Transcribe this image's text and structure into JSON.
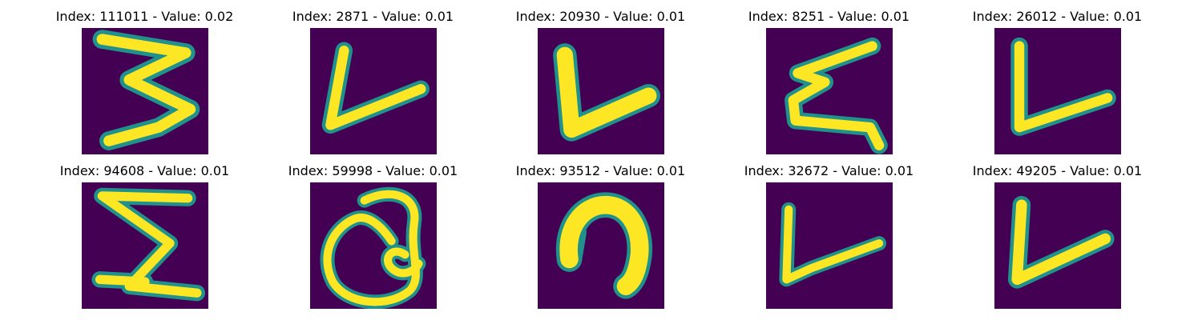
{
  "panels": [
    {
      "index_label": "Index: 111011 - Value: 0.02",
      "glyph": "three-stroke-icon"
    },
    {
      "index_label": "Index: 2871 - Value: 0.01",
      "glyph": "v-stroke-icon"
    },
    {
      "index_label": "Index: 20930 - Value: 0.01",
      "glyph": "v-stroke-icon"
    },
    {
      "index_label": "Index: 8251 - Value: 0.01",
      "glyph": "zigzag-stroke-icon"
    },
    {
      "index_label": "Index: 26012 - Value: 0.01",
      "glyph": "v-stroke-icon"
    },
    {
      "index_label": "Index: 94608 - Value: 0.01",
      "glyph": "sigma-stroke-icon"
    },
    {
      "index_label": "Index: 59998 - Value: 0.01",
      "glyph": "loop-stroke-icon"
    },
    {
      "index_label": "Index: 93512 - Value: 0.01",
      "glyph": "hook-stroke-icon"
    },
    {
      "index_label": "Index: 32672 - Value: 0.01",
      "glyph": "v-stroke-icon"
    },
    {
      "index_label": "Index: 49205 - Value: 0.01",
      "glyph": "v-stroke-icon"
    }
  ],
  "colors": {
    "background": "#440154",
    "edge": "#21918c",
    "stroke": "#fde725"
  }
}
